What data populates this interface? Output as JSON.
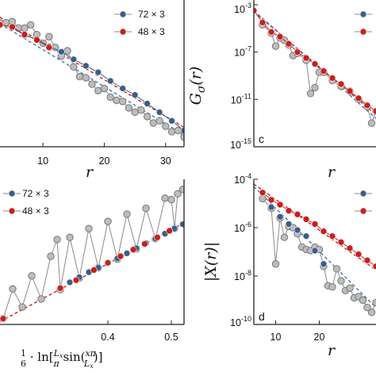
{
  "colors": {
    "blue": "#3a5e8c",
    "red": "#c8201c",
    "gray": "#bdbdbd",
    "gray_line": "#8a8a8a",
    "fit_red": "#d7191c",
    "fit_blue": "#4a74b4",
    "axis": "#222222"
  },
  "chart_data": [
    {
      "panel": "a",
      "panel_label": "",
      "type": "scatter",
      "xlabel": "r",
      "ylabel": "",
      "x_ticks": [
        "10",
        "20",
        "30"
      ],
      "xlim": [
        3,
        33
      ],
      "log_y": true,
      "ylim_log10": [
        -6.5,
        0.3
      ],
      "legend": {
        "placement": "top-right",
        "entries": [
          "72 × 3",
          "48 × 3"
        ]
      },
      "series": [
        {
          "name": "72 × 3",
          "color": "blue",
          "type": "line+markers",
          "points": [
            [
              3,
              -0.85
            ],
            [
              5,
              -0.95
            ],
            [
              7,
              -1.35
            ],
            [
              9,
              -1.5
            ],
            [
              11,
              -1.85
            ],
            [
              13,
              -2.1
            ],
            [
              15,
              -2.45
            ],
            [
              17,
              -2.75
            ],
            [
              19,
              -3.05
            ],
            [
              21,
              -3.45
            ],
            [
              23,
              -3.8
            ],
            [
              25,
              -4.1
            ],
            [
              27,
              -4.5
            ],
            [
              29,
              -4.9
            ],
            [
              31,
              -5.3
            ],
            [
              33,
              -5.75
            ]
          ]
        },
        {
          "name": "48 × 3",
          "color": "red",
          "type": "line+markers",
          "points": [
            [
              3,
              -0.85
            ],
            [
              5,
              -0.95
            ],
            [
              7,
              -1.3
            ],
            [
              9,
              -1.55
            ],
            [
              11,
              -1.9
            ]
          ]
        },
        {
          "name": "",
          "color": "gray",
          "type": "line+markers",
          "points": [
            [
              3,
              -0.75
            ],
            [
              4,
              -0.75
            ],
            [
              5,
              -0.7
            ],
            [
              6,
              -1.0
            ],
            [
              7,
              -1.0
            ],
            [
              8,
              -0.85
            ],
            [
              9,
              -1.3
            ],
            [
              10,
              -1.7
            ],
            [
              11,
              -1.4
            ],
            [
              12,
              -1.9
            ],
            [
              13,
              -2.3
            ],
            [
              14,
              -2.05
            ],
            [
              15,
              -2.8
            ],
            [
              16,
              -3.25
            ],
            [
              17,
              -3.3
            ],
            [
              18,
              -3.6
            ],
            [
              19,
              -3.9
            ],
            [
              20,
              -3.8
            ],
            [
              21,
              -4.2
            ],
            [
              22,
              -4.35
            ],
            [
              23,
              -4.4
            ],
            [
              24,
              -4.7
            ],
            [
              25,
              -4.9
            ],
            [
              26,
              -4.8
            ],
            [
              27,
              -5.1
            ],
            [
              28,
              -5.4
            ],
            [
              29,
              -5.3
            ],
            [
              30,
              -5.55
            ],
            [
              31,
              -5.8
            ],
            [
              32,
              -5.75
            ],
            [
              33,
              -6.05
            ]
          ]
        }
      ],
      "fits": [
        {
          "color": "fit_red",
          "points": [
            [
              3,
              -0.5
            ],
            [
              33,
              -5.6
            ]
          ]
        },
        {
          "color": "fit_blue",
          "points": [
            [
              3,
              -0.8
            ],
            [
              33,
              -5.95
            ]
          ]
        }
      ]
    },
    {
      "panel": "c",
      "panel_label": "c",
      "type": "scatter",
      "xlabel": "r",
      "ylabel": "G_σ(r)",
      "x_ticks": [],
      "xlim": [
        5,
        33
      ],
      "log_y": true,
      "ylim_log10": [
        -15,
        -2.6
      ],
      "y_ticks": [
        {
          "value": -3,
          "label": "10",
          "exp": "-3"
        },
        {
          "value": -7,
          "label": "10",
          "exp": "-7"
        },
        {
          "value": -11,
          "label": "10",
          "exp": "-11"
        },
        {
          "value": -15,
          "label": "10",
          "exp": "-15"
        }
      ],
      "legend": {
        "placement": "top-right",
        "entries": [
          "",
          ""
        ]
      },
      "series": [
        {
          "name": "",
          "color": "red",
          "type": "line+markers",
          "points": [
            [
              5,
              -3.5
            ],
            [
              7,
              -4.5
            ],
            [
              9,
              -5.3
            ],
            [
              11,
              -5.7
            ],
            [
              13,
              -6.3
            ],
            [
              15,
              -7.0
            ],
            [
              17,
              -7.5
            ],
            [
              19,
              -8.0
            ],
            [
              21,
              -8.6
            ],
            [
              23,
              -9.2
            ],
            [
              25,
              -9.7
            ],
            [
              27,
              -10.3
            ],
            [
              29,
              -10.9
            ],
            [
              31,
              -11.5
            ],
            [
              33,
              -12.0
            ]
          ]
        },
        {
          "name": "",
          "color": "gray",
          "type": "line+markers",
          "points": [
            [
              7,
              -4.7
            ],
            [
              9,
              -5.4
            ],
            [
              10,
              -6.5
            ],
            [
              11,
              -5.8
            ],
            [
              12,
              -6.0
            ],
            [
              13,
              -6.4
            ],
            [
              14,
              -7.3
            ],
            [
              15,
              -7.1
            ],
            [
              17,
              -7.7
            ],
            [
              18,
              -10.5
            ],
            [
              19,
              -10.0
            ],
            [
              20,
              -8.7
            ],
            [
              21,
              -8.7
            ],
            [
              23,
              -9.4
            ],
            [
              25,
              -9.9
            ],
            [
              27,
              -10.3
            ],
            [
              29,
              -11.0
            ],
            [
              31,
              -11.6
            ],
            [
              32,
              -13.0
            ],
            [
              33,
              -12.0
            ]
          ]
        }
      ],
      "fits": [
        {
          "color": "fit_red",
          "points": [
            [
              5,
              -3.6
            ],
            [
              33,
              -12.3
            ]
          ]
        },
        {
          "color": "fit_blue",
          "points": [
            [
              5,
              -3.5
            ],
            [
              33,
              -12.6
            ]
          ]
        }
      ]
    },
    {
      "panel": "b",
      "panel_label": "",
      "type": "scatter",
      "xlabel": "1/6 · ln[L_x/π sin(xπ/L_x)]",
      "ylabel": "",
      "x_ticks": [
        "0.4",
        "0.5"
      ],
      "xlim": [
        0.23,
        0.52
      ],
      "ylim": [
        0,
        1
      ],
      "legend": {
        "placement": "top-left",
        "entries": [
          "72 × 3",
          "48 × 3"
        ]
      },
      "series": [
        {
          "name": "72 × 3",
          "color": "blue",
          "type": "markers",
          "points": [
            [
              0.235,
              0.04
            ],
            [
              0.325,
              0.25
            ],
            [
              0.34,
              0.29
            ],
            [
              0.355,
              0.325
            ],
            [
              0.37,
              0.36
            ],
            [
              0.385,
              0.39
            ],
            [
              0.4,
              0.425
            ],
            [
              0.415,
              0.455
            ],
            [
              0.43,
              0.49
            ],
            [
              0.445,
              0.525
            ],
            [
              0.46,
              0.56
            ],
            [
              0.475,
              0.59
            ],
            [
              0.49,
              0.625
            ],
            [
              0.505,
              0.66
            ],
            [
              0.518,
              0.69
            ]
          ]
        },
        {
          "name": "48 × 3",
          "color": "red",
          "type": "markers",
          "points": [
            [
              0.235,
              0.04
            ],
            [
              0.325,
              0.25
            ],
            [
              0.35,
              0.305
            ],
            [
              0.378,
              0.375
            ],
            [
              0.4,
              0.425
            ],
            [
              0.42,
              0.47
            ],
            [
              0.44,
              0.515
            ],
            [
              0.458,
              0.555
            ],
            [
              0.478,
              0.6
            ],
            [
              0.497,
              0.645
            ]
          ]
        },
        {
          "name": "",
          "color": "gray",
          "type": "line+markers",
          "points": [
            [
              0.235,
              0.04
            ],
            [
              0.25,
              0.245
            ],
            [
              0.265,
              0.12
            ],
            [
              0.28,
              0.335
            ],
            [
              0.295,
              0.175
            ],
            [
              0.31,
              0.47
            ],
            [
              0.32,
              0.585
            ],
            [
              0.325,
              0.24
            ],
            [
              0.34,
              0.6
            ],
            [
              0.355,
              0.32
            ],
            [
              0.37,
              0.66
            ],
            [
              0.385,
              0.39
            ],
            [
              0.4,
              0.71
            ],
            [
              0.415,
              0.45
            ],
            [
              0.43,
              0.76
            ],
            [
              0.445,
              0.52
            ],
            [
              0.46,
              0.8
            ],
            [
              0.475,
              0.59
            ],
            [
              0.49,
              0.87
            ],
            [
              0.5,
              0.86
            ],
            [
              0.505,
              0.66
            ],
            [
              0.51,
              0.9
            ],
            [
              0.518,
              0.93
            ]
          ]
        }
      ],
      "fits": [
        {
          "color": "fit_red",
          "points": [
            [
              0.23,
              0.02
            ],
            [
              0.52,
              0.7
            ]
          ]
        }
      ]
    },
    {
      "panel": "d",
      "panel_label": "d",
      "type": "scatter",
      "xlabel": "r",
      "ylabel": "|X(r)|",
      "x_ticks": [
        "10",
        "20"
      ],
      "xlim": [
        5,
        33
      ],
      "log_y": true,
      "ylim_log10": [
        -10,
        -4
      ],
      "y_ticks": [
        {
          "value": -4,
          "label": "10",
          "exp": "-4"
        },
        {
          "value": -6,
          "label": "10",
          "exp": "-6"
        },
        {
          "value": -8,
          "label": "10",
          "exp": "-8"
        },
        {
          "value": -10,
          "label": "10",
          "exp": "-10"
        }
      ],
      "legend": {
        "placement": "top-right",
        "entries": [
          "",
          ""
        ]
      },
      "series": [
        {
          "name": "",
          "color": "red",
          "type": "line+markers",
          "points": [
            [
              7,
              -4.55
            ],
            [
              9,
              -4.85
            ],
            [
              11,
              -5.05
            ],
            [
              13,
              -5.3
            ],
            [
              15,
              -5.45
            ],
            [
              17,
              -5.65
            ],
            [
              19,
              -5.85
            ],
            [
              21,
              -6.15
            ],
            [
              23,
              -6.35
            ],
            [
              25,
              -6.6
            ],
            [
              27,
              -6.85
            ],
            [
              29,
              -7.1
            ],
            [
              31,
              -7.35
            ],
            [
              33,
              -7.6
            ]
          ]
        },
        {
          "name": "",
          "color": "blue",
          "type": "markers",
          "points": [
            [
              9,
              -5.15
            ],
            [
              11,
              -5.55
            ],
            [
              13,
              -5.85
            ],
            [
              15,
              -6.1
            ],
            [
              17,
              -6.35
            ],
            [
              19,
              -6.95
            ],
            [
              21,
              -7.5
            ]
          ]
        },
        {
          "name": "",
          "color": "gray",
          "type": "line+markers",
          "points": [
            [
              7,
              -4.8
            ],
            [
              9,
              -5.2
            ],
            [
              10,
              -7.5
            ],
            [
              11,
              -5.6
            ],
            [
              12,
              -6.4
            ],
            [
              13,
              -5.95
            ],
            [
              14,
              -6.0
            ],
            [
              15,
              -6.25
            ],
            [
              16,
              -6.8
            ],
            [
              17,
              -6.9
            ],
            [
              18,
              -6.95
            ],
            [
              19,
              -6.8
            ],
            [
              20,
              -6.9
            ],
            [
              21,
              -7.6
            ],
            [
              22,
              -8.4
            ],
            [
              23,
              -8.45
            ],
            [
              24,
              -7.7
            ],
            [
              25,
              -8.2
            ],
            [
              26,
              -8.6
            ],
            [
              27,
              -8.5
            ],
            [
              28,
              -8.9
            ],
            [
              29,
              -8.85
            ],
            [
              30,
              -9.0
            ],
            [
              31,
              -9.3
            ],
            [
              32,
              -9.5
            ],
            [
              33,
              -9.1
            ]
          ]
        }
      ],
      "fits": [
        {
          "color": "fit_red",
          "points": [
            [
              5,
              -4.2
            ],
            [
              33,
              -7.75
            ]
          ]
        },
        {
          "color": "fit_blue",
          "points": [
            [
              5,
              -4.3
            ],
            [
              33,
              -9.3
            ]
          ]
        }
      ]
    }
  ]
}
